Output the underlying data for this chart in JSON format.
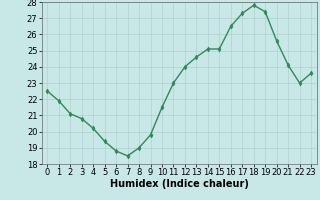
{
  "x": [
    0,
    1,
    2,
    3,
    4,
    5,
    6,
    7,
    8,
    9,
    10,
    11,
    12,
    13,
    14,
    15,
    16,
    17,
    18,
    19,
    20,
    21,
    22,
    23
  ],
  "y": [
    22.5,
    21.9,
    21.1,
    20.8,
    20.2,
    19.4,
    18.8,
    18.5,
    19.0,
    19.8,
    21.5,
    23.0,
    24.0,
    24.6,
    25.1,
    25.1,
    26.5,
    27.3,
    27.8,
    27.4,
    25.6,
    24.1,
    23.0,
    23.6
  ],
  "line_color": "#2e8b57",
  "marker": "d",
  "marker_size": 2.5,
  "background_color": "#c8e8e8",
  "grid_color": "#b0d0d0",
  "xlabel": "Humidex (Indice chaleur)",
  "ylim": [
    18,
    28
  ],
  "xlim": [
    -0.5,
    23.5
  ],
  "yticks": [
    18,
    19,
    20,
    21,
    22,
    23,
    24,
    25,
    26,
    27,
    28
  ],
  "xticks": [
    0,
    1,
    2,
    3,
    4,
    5,
    6,
    7,
    8,
    9,
    10,
    11,
    12,
    13,
    14,
    15,
    16,
    17,
    18,
    19,
    20,
    21,
    22,
    23
  ],
  "xlabel_fontsize": 7,
  "tick_fontsize": 6,
  "linewidth": 1.0
}
